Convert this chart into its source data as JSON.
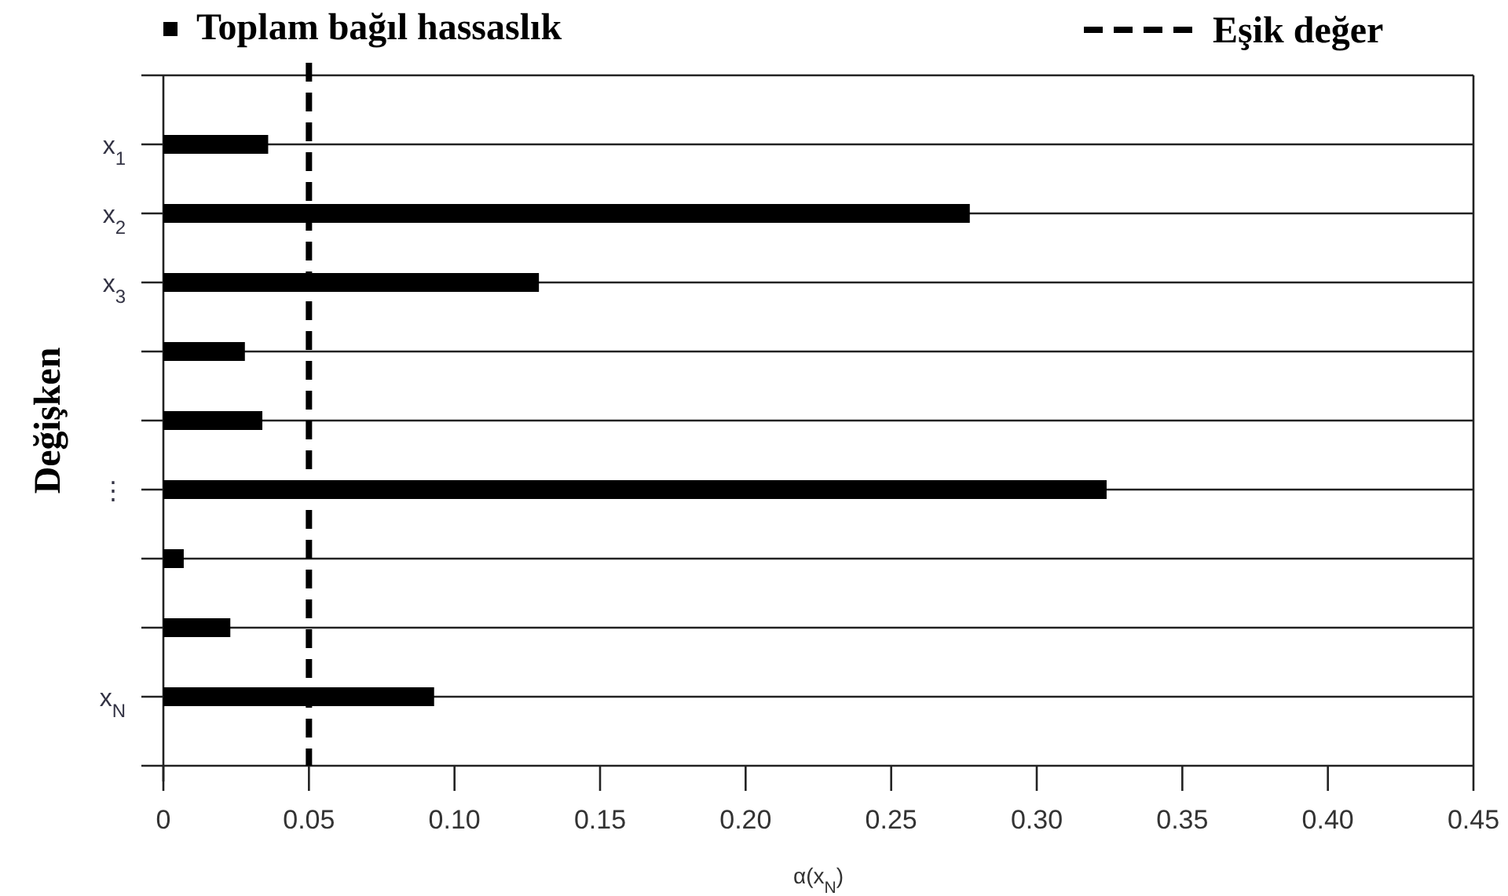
{
  "chart_data": {
    "type": "bar",
    "orientation": "horizontal",
    "xlabel": "α(x$_{N}$)",
    "ylabel": "Değişken",
    "categories": [
      null,
      "x$_{1}$",
      "x$_{2}$",
      "x$_{3}$",
      null,
      null,
      "⋮",
      null,
      null,
      "x$_{N}$",
      null
    ],
    "series": [
      {
        "name": "Toplam bağıl hassaslık",
        "color": "#000000",
        "values": [
          null,
          0.036,
          0.277,
          0.129,
          0.028,
          0.034,
          0.324,
          0.007,
          0.023,
          0.093,
          null
        ]
      }
    ],
    "xlim": [
      0,
      0.45
    ],
    "xticks": [
      0,
      {
        "value": 0.05,
        "label": "0.05"
      },
      {
        "value": 0.1,
        "label": "0.10"
      },
      {
        "value": 0.15,
        "label": "0.15"
      },
      {
        "value": 0.2,
        "label": "0.20"
      },
      {
        "value": 0.25,
        "label": "0.25"
      },
      {
        "value": 0.3,
        "label": "0.30"
      },
      {
        "value": 0.35,
        "label": "0.35"
      },
      {
        "value": 0.4,
        "label": "0.40"
      },
      {
        "value": 0.45,
        "label": "0.45"
      }
    ],
    "ref_lines": [
      {
        "axis": "x",
        "value": 0.05,
        "label": "Eşik değer",
        "color": "#000000",
        "line_style": "dashed"
      }
    ],
    "grid": "y",
    "legend": "top"
  }
}
